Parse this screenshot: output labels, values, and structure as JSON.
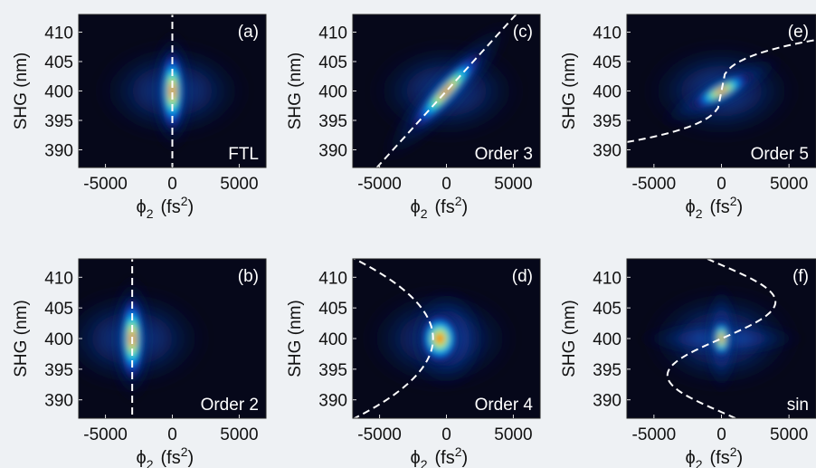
{
  "chart_data": [
    {
      "type": "heatmap",
      "panel_label": "(a)",
      "corner_label": "FTL",
      "xlabel_symbol": "ϕ",
      "xlabel_subscript": "2",
      "xlabel_unit": "(fs",
      "xlabel_unit_power": "2",
      "xlabel_unit_close": ")",
      "ylabel": "SHG (nm)",
      "xlim": [
        -7000,
        7000
      ],
      "ylim": [
        387,
        413
      ],
      "xticks": [
        "-5000",
        "0",
        "5000"
      ],
      "yticks": [
        "390",
        "395",
        "400",
        "405",
        "410"
      ],
      "trace": {
        "shape": "vertical",
        "center_phi2": 0
      },
      "peak": {
        "phi2": 0,
        "shg": 400
      }
    },
    {
      "type": "heatmap",
      "panel_label": "(b)",
      "corner_label": "Order 2",
      "xlabel_symbol": "ϕ",
      "xlabel_subscript": "2",
      "xlabel_unit": "(fs",
      "xlabel_unit_power": "2",
      "xlabel_unit_close": ")",
      "ylabel": "SHG (nm)",
      "xlim": [
        -7000,
        7000
      ],
      "ylim": [
        387,
        413
      ],
      "xticks": [
        "-5000",
        "0",
        "5000"
      ],
      "yticks": [
        "390",
        "395",
        "400",
        "405",
        "410"
      ],
      "trace": {
        "shape": "vertical",
        "center_phi2": -3000
      },
      "peak": {
        "phi2": -3000,
        "shg": 400
      }
    },
    {
      "type": "heatmap",
      "panel_label": "(c)",
      "corner_label": "Order 3",
      "xlabel_symbol": "ϕ",
      "xlabel_subscript": "2",
      "xlabel_unit": "(fs",
      "xlabel_unit_power": "2",
      "xlabel_unit_close": ")",
      "ylabel": "SHG (nm)",
      "xlim": [
        -7000,
        7000
      ],
      "ylim": [
        387,
        413
      ],
      "xticks": [
        "-5000",
        "0",
        "5000"
      ],
      "yticks": [
        "390",
        "395",
        "400",
        "405",
        "410"
      ],
      "trace": {
        "shape": "linear",
        "slope_nm_per_fs2": 0.0025
      },
      "peak": {
        "phi2": 0,
        "shg": 400
      }
    },
    {
      "type": "heatmap",
      "panel_label": "(d)",
      "corner_label": "Order 4",
      "xlabel_symbol": "ϕ",
      "xlabel_subscript": "2",
      "xlabel_unit": "(fs",
      "xlabel_unit_power": "2",
      "xlabel_unit_close": ")",
      "ylabel": "SHG (nm)",
      "xlim": [
        -7000,
        7000
      ],
      "ylim": [
        387,
        413
      ],
      "xticks": [
        "-5000",
        "0",
        "5000"
      ],
      "yticks": [
        "390",
        "395",
        "400",
        "405",
        "410"
      ],
      "trace": {
        "shape": "parabola",
        "vertex_phi2": -1000,
        "vertex_shg": 400,
        "edge_phi2": -6000,
        "edge_shg_offset": 12
      },
      "peak": {
        "phi2": -500,
        "shg": 400
      }
    },
    {
      "type": "heatmap",
      "panel_label": "(e)",
      "corner_label": "Order 5",
      "xlabel_symbol": "ϕ",
      "xlabel_subscript": "2",
      "xlabel_unit": "(fs",
      "xlabel_unit_power": "2",
      "xlabel_unit_close": ")",
      "ylabel": "SHG (nm)",
      "xlim": [
        -7000,
        7000
      ],
      "ylim": [
        387,
        413
      ],
      "xticks": [
        "-5000",
        "0",
        "5000"
      ],
      "yticks": [
        "390",
        "395",
        "400",
        "405",
        "410"
      ],
      "trace": {
        "shape": "cubic",
        "scale_phi2": 6000,
        "amplitude_nm": 11
      },
      "peak": {
        "phi2": 0,
        "shg": 400
      }
    },
    {
      "type": "heatmap",
      "panel_label": "(f)",
      "corner_label": "sin",
      "xlabel_symbol": "ϕ",
      "xlabel_subscript": "2",
      "xlabel_unit": "(fs",
      "xlabel_unit_power": "2",
      "xlabel_unit_close": ")",
      "ylabel": "SHG (nm)",
      "xlim": [
        -7000,
        7000
      ],
      "ylim": [
        387,
        413
      ],
      "xticks": [
        "-5000",
        "0",
        "5000"
      ],
      "yticks": [
        "390",
        "395",
        "400",
        "405",
        "410"
      ],
      "trace": {
        "shape": "sine",
        "amplitude_phi2": 4000,
        "period_nm": 24
      },
      "peak": {
        "phi2": 0,
        "shg": 400
      }
    }
  ]
}
